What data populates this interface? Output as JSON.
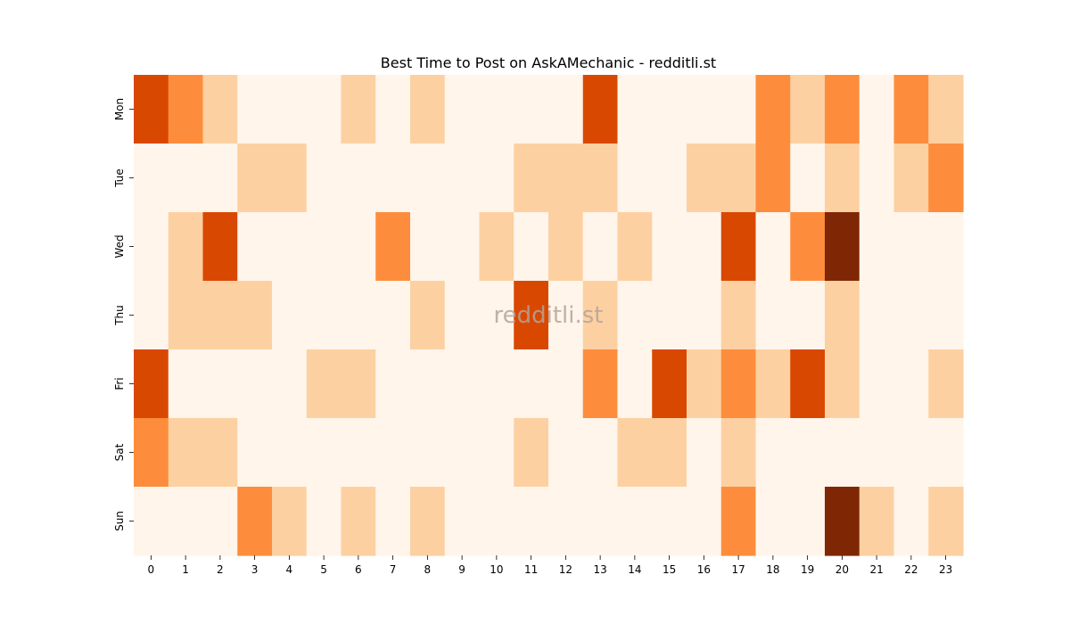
{
  "chart_data": {
    "type": "heatmap",
    "title": "Best Time to Post on AskAMechanic - redditli.st",
    "watermark": "redditli.st",
    "x_categories": [
      "0",
      "1",
      "2",
      "3",
      "4",
      "5",
      "6",
      "7",
      "8",
      "9",
      "10",
      "11",
      "12",
      "13",
      "14",
      "15",
      "16",
      "17",
      "18",
      "19",
      "20",
      "21",
      "22",
      "23"
    ],
    "y_categories": [
      "Mon",
      "Tue",
      "Wed",
      "Thu",
      "Fri",
      "Sat",
      "Sun"
    ],
    "colorscale": "Oranges",
    "value_scale": [
      0,
      4
    ],
    "level_colors": [
      "#fff5eb",
      "#fdd0a2",
      "#fd8d3c",
      "#d94801",
      "#7f2704"
    ],
    "values": [
      [
        3,
        2,
        1,
        0,
        0,
        0,
        1,
        0,
        1,
        0,
        0,
        0,
        0,
        3,
        0,
        0,
        0,
        0,
        2,
        1,
        2,
        0,
        2,
        1
      ],
      [
        0,
        0,
        0,
        1,
        1,
        0,
        0,
        0,
        0,
        0,
        0,
        1,
        1,
        1,
        0,
        0,
        1,
        1,
        2,
        0,
        1,
        0,
        1,
        2
      ],
      [
        0,
        1,
        3,
        0,
        0,
        0,
        0,
        2,
        0,
        0,
        1,
        0,
        1,
        0,
        1,
        0,
        0,
        3,
        0,
        2,
        4,
        0,
        0,
        0
      ],
      [
        0,
        1,
        1,
        1,
        0,
        0,
        0,
        0,
        1,
        0,
        0,
        3,
        0,
        1,
        0,
        0,
        0,
        1,
        0,
        0,
        1,
        0,
        0,
        0
      ],
      [
        3,
        0,
        0,
        0,
        0,
        1,
        1,
        0,
        0,
        0,
        0,
        0,
        0,
        2,
        0,
        3,
        1,
        2,
        1,
        3,
        1,
        0,
        0,
        1
      ],
      [
        2,
        1,
        1,
        0,
        0,
        0,
        0,
        0,
        0,
        0,
        0,
        1,
        0,
        0,
        1,
        1,
        0,
        1,
        0,
        0,
        0,
        0,
        0,
        0
      ],
      [
        0,
        0,
        0,
        2,
        1,
        0,
        1,
        0,
        1,
        0,
        0,
        0,
        0,
        0,
        0,
        0,
        0,
        2,
        0,
        0,
        4,
        1,
        0,
        1
      ]
    ]
  }
}
